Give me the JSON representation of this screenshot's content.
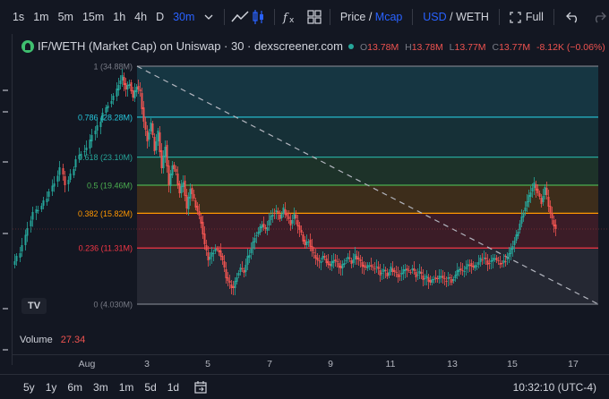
{
  "toolbar": {
    "intervals": [
      "1s",
      "1m",
      "5m",
      "15m",
      "1h",
      "4h",
      "D",
      "30m"
    ],
    "active_interval": "30m",
    "price_label": "Price",
    "price_sep": "/",
    "mcap_label": "Mcap",
    "usd_label": "USD",
    "usd_sep": "/",
    "weth_label": "WETH",
    "full_label": "Full"
  },
  "legend": {
    "title": "IF/WETH (Market Cap) on Uniswap · 30 · dexscreener.com",
    "o_label": "O",
    "o_value": "13.78M",
    "h_label": "H",
    "h_value": "13.78M",
    "l_label": "L",
    "l_value": "13.77M",
    "c_label": "C",
    "c_value": "13.77M",
    "change": "-8.12K (−0.06%)"
  },
  "fib_levels": [
    {
      "label": "1 (34.88M)",
      "ratio": 1,
      "color": "#787b86"
    },
    {
      "label": "0.786 (28.28M)",
      "ratio": 0.786,
      "color": "#26c6da"
    },
    {
      "label": "0.618 (23.10M)",
      "ratio": 0.618,
      "color": "#26a69a"
    },
    {
      "label": "0.5 (19.46M)",
      "ratio": 0.5,
      "color": "#4caf50"
    },
    {
      "label": "0.382 (15.82M)",
      "ratio": 0.382,
      "color": "#ff9800"
    },
    {
      "label": "0.236 (11.31M)",
      "ratio": 0.236,
      "color": "#f23645"
    },
    {
      "label": "0 (4.030M)",
      "ratio": 0,
      "color": "#787b86"
    }
  ],
  "volume": {
    "label": "Volume",
    "value": "27.34"
  },
  "xaxis": {
    "labels": [
      "Aug",
      "3",
      "5",
      "7",
      "9",
      "11",
      "13",
      "15",
      "17"
    ]
  },
  "bottom": {
    "ranges": [
      "5y",
      "1y",
      "6m",
      "3m",
      "1m",
      "5d",
      "1d"
    ],
    "time": "10:32:10 (UTC-4)"
  },
  "tv_logo": "TV",
  "colors": {
    "up": "#26a69a",
    "down": "#ef5350",
    "accent": "#2962ff"
  }
}
